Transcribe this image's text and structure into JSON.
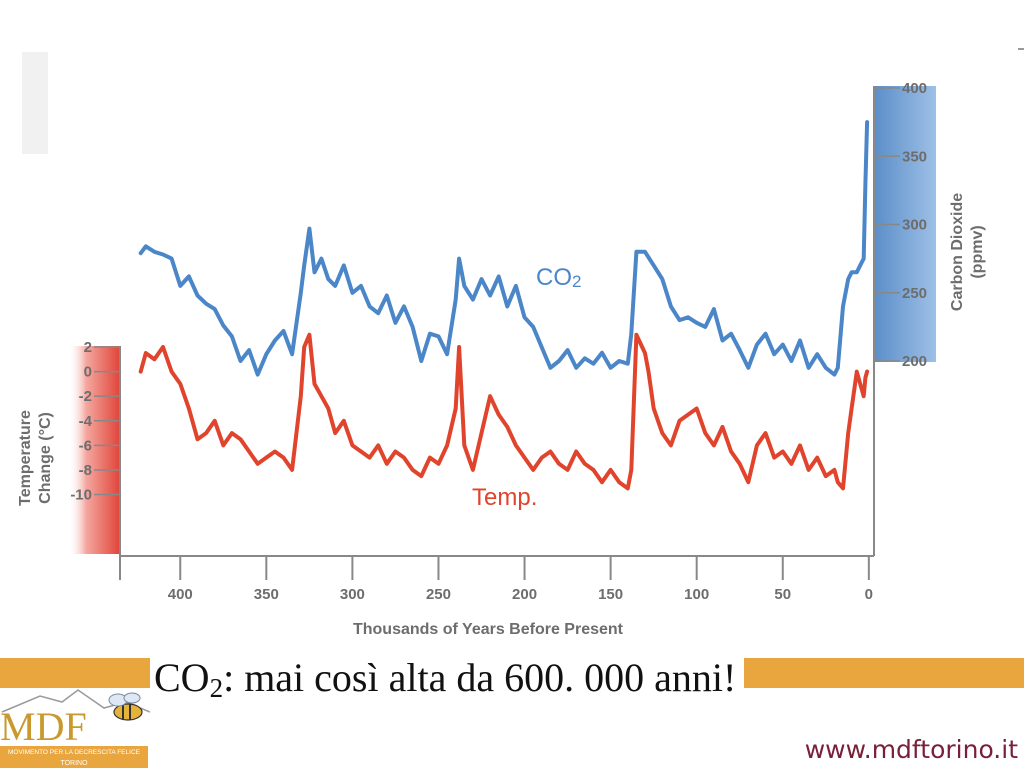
{
  "chart_data": {
    "type": "line",
    "xlabel": "Thousands of Years Before Present",
    "x_ticks": [
      "400",
      "350",
      "300",
      "250",
      "200",
      "150",
      "100",
      "50",
      "0"
    ],
    "xlim": [
      435,
      -3
    ],
    "left_axis": {
      "title_line1": "Temperature",
      "title_line2": "Change (°C)",
      "ticks": [
        "2",
        "0",
        "-2",
        "-4",
        "-6",
        "-8",
        "-10"
      ],
      "ylim": [
        -15,
        2
      ],
      "band_color": "#e0443a"
    },
    "right_axis": {
      "title_line1": "Carbon Dioxide",
      "title_line2": "(ppmv)",
      "ticks": [
        "400",
        "350",
        "300",
        "250",
        "200"
      ],
      "ylim": [
        200,
        400
      ],
      "band_color": "#5b8ec9"
    },
    "series": [
      {
        "name": "CO2",
        "label_main": "CO",
        "label_sub": "2",
        "color": "#4a86c8",
        "axis": "right",
        "x": [
          423,
          420,
          415,
          410,
          405,
          400,
          395,
          390,
          385,
          380,
          375,
          370,
          365,
          360,
          355,
          350,
          345,
          340,
          335,
          330,
          328,
          325,
          322,
          318,
          314,
          310,
          305,
          300,
          295,
          290,
          285,
          280,
          275,
          270,
          265,
          260,
          255,
          250,
          245,
          240,
          238,
          235,
          230,
          225,
          220,
          215,
          210,
          205,
          200,
          195,
          190,
          185,
          180,
          175,
          170,
          165,
          160,
          155,
          150,
          145,
          140,
          138,
          135,
          130,
          128,
          125,
          120,
          115,
          110,
          105,
          100,
          95,
          90,
          85,
          80,
          75,
          70,
          65,
          60,
          55,
          50,
          45,
          40,
          35,
          30,
          25,
          20,
          18,
          15,
          12,
          10,
          7,
          5,
          3,
          2,
          1
        ],
        "y": [
          279,
          284,
          280,
          278,
          275,
          255,
          262,
          248,
          242,
          238,
          226,
          218,
          200,
          208,
          190,
          205,
          215,
          222,
          205,
          250,
          270,
          297,
          265,
          275,
          260,
          255,
          270,
          250,
          255,
          240,
          235,
          248,
          228,
          240,
          225,
          200,
          220,
          218,
          205,
          245,
          275,
          255,
          245,
          260,
          248,
          262,
          240,
          255,
          232,
          225,
          210,
          195,
          200,
          208,
          195,
          202,
          198,
          206,
          195,
          200,
          198,
          220,
          280,
          280,
          276,
          270,
          260,
          240,
          230,
          232,
          228,
          225,
          238,
          215,
          220,
          208,
          195,
          212,
          220,
          205,
          212,
          200,
          215,
          195,
          205,
          195,
          190,
          195,
          240,
          260,
          265,
          265,
          270,
          275,
          330,
          375
        ]
      },
      {
        "name": "Temp.",
        "label_main": "Temp.",
        "color": "#e0442c",
        "axis": "left",
        "x": [
          423,
          420,
          415,
          410,
          405,
          400,
          395,
          390,
          385,
          380,
          375,
          370,
          365,
          360,
          355,
          350,
          345,
          340,
          335,
          330,
          328,
          325,
          322,
          318,
          314,
          310,
          305,
          300,
          295,
          290,
          285,
          280,
          275,
          270,
          265,
          260,
          255,
          250,
          245,
          240,
          238,
          235,
          230,
          225,
          220,
          215,
          210,
          205,
          200,
          195,
          190,
          185,
          180,
          175,
          170,
          165,
          160,
          155,
          150,
          145,
          140,
          138,
          135,
          130,
          128,
          125,
          120,
          115,
          110,
          105,
          100,
          95,
          90,
          85,
          80,
          75,
          70,
          65,
          60,
          55,
          50,
          45,
          40,
          35,
          30,
          25,
          20,
          18,
          15,
          12,
          10,
          7,
          5,
          3,
          2,
          1
        ],
        "y": [
          0,
          1.5,
          1,
          2,
          0,
          -1,
          -3,
          -5.5,
          -5,
          -4,
          -6,
          -5,
          -5.5,
          -6.5,
          -7.5,
          -7,
          -6.5,
          -7,
          -8,
          -2,
          2,
          3,
          -1,
          -2,
          -3,
          -5,
          -4,
          -6,
          -6.5,
          -7,
          -6,
          -7.5,
          -6.5,
          -7,
          -8,
          -8.5,
          -7,
          -7.5,
          -6,
          -3,
          2,
          -6,
          -8,
          -5,
          -2,
          -3.5,
          -4.5,
          -6,
          -7,
          -8,
          -7,
          -6.5,
          -7.5,
          -8,
          -6.5,
          -7.5,
          -8,
          -9,
          -8,
          -9,
          -9.5,
          -8,
          3,
          1.5,
          0,
          -3,
          -5,
          -6,
          -4,
          -3.5,
          -3,
          -5,
          -6,
          -4.5,
          -6.5,
          -7.5,
          -9,
          -6,
          -5,
          -7,
          -6.5,
          -7.5,
          -6,
          -8,
          -7,
          -8.5,
          -8,
          -9,
          -9.5,
          -5,
          -3,
          0,
          -1,
          -2,
          -0.5,
          0
        ]
      }
    ]
  },
  "caption": {
    "main": "CO",
    "sub": "2",
    "rest": ": mai così alta da 600. 000 anni!"
  },
  "logo": {
    "letters": "MDF",
    "subtitle": "MOVIMENTO PER LA DECRESCITA FELICE",
    "city": "TORINO"
  },
  "footer": {
    "url": "www.mdftorino.it"
  },
  "colors": {
    "banner": "#e9a53e",
    "url": "#7a1f3a"
  }
}
